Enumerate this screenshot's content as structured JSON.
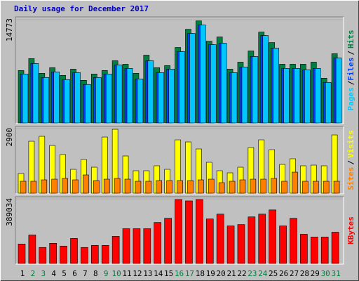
{
  "chart_data": {
    "type": "bar",
    "title": "Daily usage for December 2017",
    "categories": [
      "1",
      "2",
      "3",
      "4",
      "5",
      "6",
      "7",
      "8",
      "9",
      "10",
      "11",
      "12",
      "13",
      "14",
      "15",
      "16",
      "17",
      "18",
      "19",
      "20",
      "21",
      "22",
      "23",
      "24",
      "25",
      "26",
      "27",
      "28",
      "29",
      "30",
      "31"
    ],
    "category_colors": [
      "#000000",
      "#008040",
      "#008040",
      "#000000",
      "#000000",
      "#000000",
      "#000000",
      "#000000",
      "#008040",
      "#008040",
      "#000000",
      "#000000",
      "#000000",
      "#000000",
      "#000000",
      "#008040",
      "#008040",
      "#000000",
      "#000000",
      "#000000",
      "#000000",
      "#000000",
      "#008040",
      "#008040",
      "#000000",
      "#000000",
      "#000000",
      "#000000",
      "#000000",
      "#008040",
      "#008040"
    ],
    "legend_separator": "/",
    "panels": [
      {
        "ylim": [
          0,
          14773
        ],
        "yticks": [
          14773
        ],
        "series": [
          {
            "name": "Hits",
            "color": "#008040",
            "values": [
              7500,
              9200,
              7100,
              7900,
              6800,
              7700,
              6100,
              7000,
              7500,
              8900,
              8400,
              7100,
              9700,
              7900,
              8200,
              10800,
              13400,
              14600,
              11700,
              12300,
              7700,
              8700,
              10300,
              13000,
              11500,
              8400,
              8400,
              8400,
              8700,
              6400,
              9900
            ]
          },
          {
            "name": "Files",
            "color": "#0040ff",
            "values": [
              7000,
              8500,
              6500,
              7300,
              6200,
              7200,
              5500,
              6500,
              7000,
              8300,
              7800,
              6300,
              8900,
              7200,
              7700,
              10200,
              12800,
              14000,
              11200,
              11400,
              7200,
              8000,
              9500,
              12500,
              10700,
              7800,
              7800,
              7600,
              7800,
              5800,
              9300
            ]
          },
          {
            "name": "Pages",
            "color": "#00c8ff",
            "values": [
              7000,
              8500,
              6500,
              7300,
              6200,
              7200,
              5500,
              6500,
              7000,
              8300,
              7800,
              6300,
              8900,
              7200,
              7700,
              10200,
              12800,
              14000,
              11200,
              11400,
              7200,
              8000,
              9500,
              12500,
              10700,
              7800,
              7800,
              7600,
              7800,
              5800,
              9300
            ]
          }
        ]
      },
      {
        "ylim": [
          0,
          2900
        ],
        "yticks": [
          2900
        ],
        "series": [
          {
            "name": "Visits",
            "color": "#ffff00",
            "values": [
              882,
              2331,
              2552,
              2142,
              1733,
              1071,
              1512,
              1166,
              2520,
              2867,
              1670,
              1008,
              1008,
              1229,
              1071,
              2394,
              2300,
              1985,
              1386,
              1008,
              914,
              1166,
              2048,
              2394,
              1953,
              1292,
              1544,
              1229,
              1260,
              1229,
              2615
            ]
          },
          {
            "name": "Sites",
            "color": "#ff8000",
            "values": [
              536,
              536,
              599,
              630,
              662,
              599,
              819,
              567,
              630,
              662,
              630,
              536,
              536,
              567,
              567,
              567,
              567,
              599,
              630,
              473,
              536,
              599,
              630,
              630,
              662,
              536,
              945,
              536,
              536,
              536,
              536
            ]
          }
        ]
      },
      {
        "ylim": [
          0,
          389034
        ],
        "yticks": [
          389034
        ],
        "series": [
          {
            "name": "KBytes",
            "color": "#ff0000",
            "values": [
              117124,
              171503,
              96209,
              121307,
              104575,
              150588,
              96209,
              108758,
              108758,
              163137,
              209150,
              209150,
              209150,
              246797,
              271895,
              384836,
              376470,
              384836,
              267712,
              296993,
              225882,
              234248,
              280261,
              296993,
              322091,
              225882,
              271895,
              175686,
              158954,
              158954,
              188235
            ]
          }
        ]
      }
    ]
  }
}
